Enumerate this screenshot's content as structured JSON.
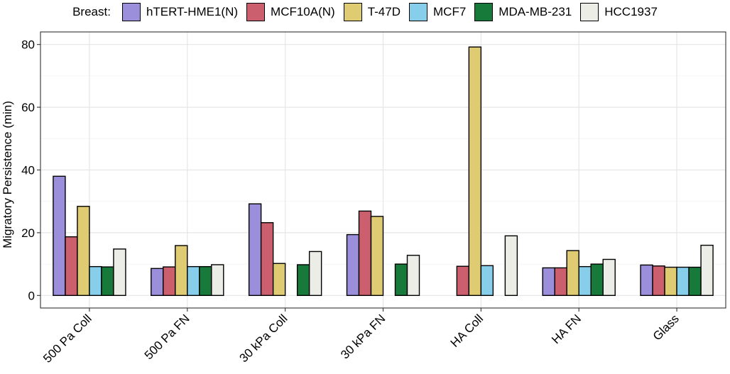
{
  "chart_data": {
    "type": "bar",
    "title": "",
    "xlabel": "",
    "ylabel": "Migratory Persistence (min)",
    "ylim": [
      -4,
      84
    ],
    "yticks": [
      0,
      20,
      40,
      60,
      80
    ],
    "grid": true,
    "legend": {
      "title": "Breast:",
      "position": "top"
    },
    "categories": [
      "500 Pa Coll",
      "500 Pa FN",
      "30 kPa Coll",
      "30 kPa FN",
      "HA Coll",
      "HA FN",
      "Glass"
    ],
    "series": [
      {
        "name": "hTERT-HME1(N)",
        "color": "#9B8FDC",
        "values": [
          38.0,
          8.6,
          29.2,
          19.4,
          null,
          8.8,
          9.7
        ]
      },
      {
        "name": "MCF10A(N)",
        "color": "#CC5F6E",
        "values": [
          18.7,
          9.1,
          23.2,
          26.9,
          9.3,
          8.8,
          9.4
        ]
      },
      {
        "name": "T-47D",
        "color": "#DECB72",
        "values": [
          28.4,
          15.9,
          10.2,
          25.2,
          79.2,
          14.3,
          9.0
        ]
      },
      {
        "name": "MCF7",
        "color": "#87CEEB",
        "values": [
          9.2,
          9.2,
          null,
          null,
          9.5,
          9.2,
          9.0
        ]
      },
      {
        "name": "MDA-MB-231",
        "color": "#17793A",
        "values": [
          9.1,
          9.2,
          9.8,
          10.0,
          null,
          10.0,
          9.0
        ]
      },
      {
        "name": "HCC1937",
        "color": "#EDEDE8",
        "values": [
          14.8,
          9.8,
          14.0,
          12.8,
          19.0,
          11.5,
          16.0
        ]
      }
    ]
  }
}
